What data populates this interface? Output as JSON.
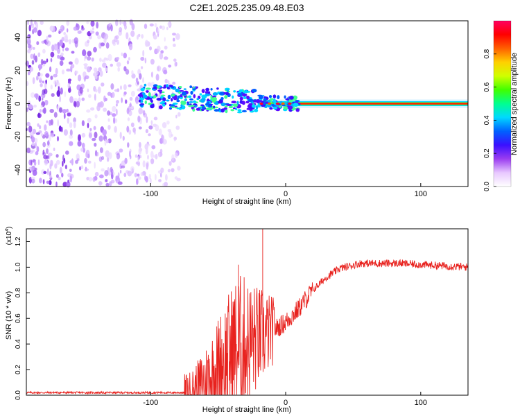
{
  "page": {
    "title": "C2E1.2025.235.09.48.E03"
  },
  "chart_data": [
    {
      "type": "heatmap",
      "xlabel": "Height of straight line (km)",
      "ylabel": "Frequency (Hz)",
      "xlim": [
        -192,
        135
      ],
      "ylim": [
        -50,
        50
      ],
      "xticks": [
        -100,
        0,
        100
      ],
      "yticks": [
        -40,
        -20,
        0,
        20,
        40
      ],
      "noise_region_x": [
        -192,
        -78
      ],
      "signal_start_x": -108,
      "colorbar": {
        "label": "Normalized spectral amplitude",
        "ticks": [
          "0.0",
          "0.2",
          "0.4",
          "0.6",
          "0.8"
        ],
        "range": [
          0,
          1
        ],
        "colors": [
          "#ffffff",
          "#e8c8ff",
          "#9a3df0",
          "#3a10ff",
          "#0060ff",
          "#00d8ff",
          "#00ff90",
          "#40ff00",
          "#d0ff00",
          "#ffd000",
          "#ff6000",
          "#ff0000",
          "#ff0060"
        ]
      }
    },
    {
      "type": "line",
      "xlabel": "Height of straight line (km)",
      "ylabel": "SNR (10 * v/v)",
      "yscale_label": "(x10",
      "yscale_exp": "4",
      "yscale_close": ")",
      "xlim": [
        -192,
        135
      ],
      "ylim": [
        0,
        1.3
      ],
      "xticks": [
        -100,
        0,
        100
      ],
      "yticks": [
        "0.0",
        "0.2",
        "0.4",
        "0.6",
        "0.8",
        "1.0",
        "1.2"
      ],
      "series": [
        {
          "name": "SNR",
          "color": "#e8221e",
          "points": [
            [
              -192,
              0.02
            ],
            [
              -75,
              0.02
            ],
            [
              -65,
              0.06
            ],
            [
              -55,
              0.15
            ],
            [
              -45,
              0.28
            ],
            [
              -38,
              0.35
            ],
            [
              -30,
              0.4
            ],
            [
              -20,
              0.45
            ],
            [
              -10,
              0.5
            ],
            [
              0,
              0.57
            ],
            [
              10,
              0.68
            ],
            [
              20,
              0.82
            ],
            [
              30,
              0.92
            ],
            [
              40,
              0.99
            ],
            [
              55,
              1.03
            ],
            [
              70,
              1.03
            ],
            [
              85,
              1.03
            ],
            [
              100,
              1.02
            ],
            [
              135,
              1.0
            ]
          ],
          "spikes": [
            [
              -35,
              1.02
            ],
            [
              -17,
              1.3
            ]
          ]
        }
      ]
    }
  ]
}
